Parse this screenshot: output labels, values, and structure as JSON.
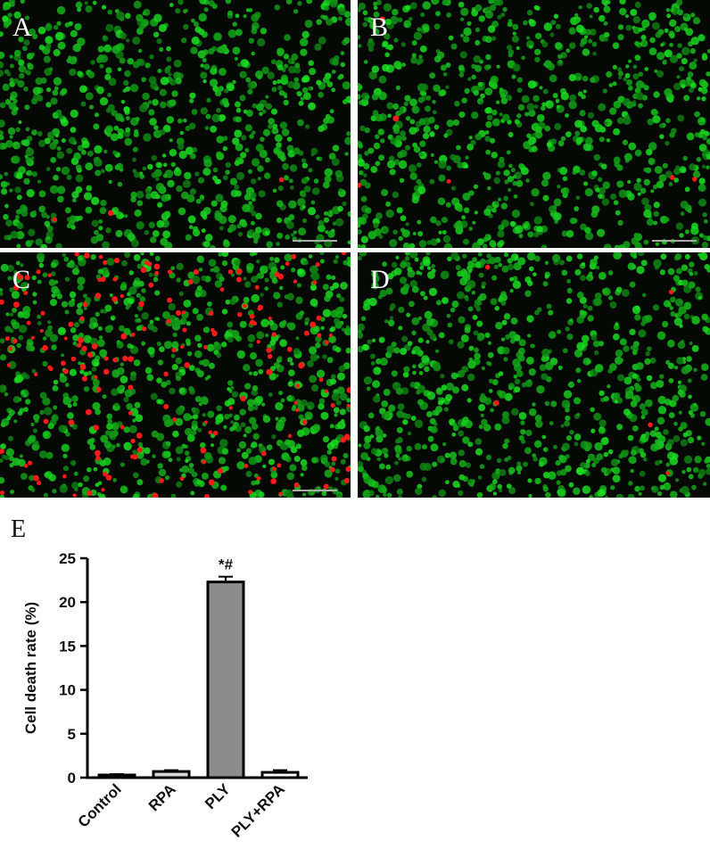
{
  "panels": [
    {
      "label": "A"
    },
    {
      "label": "B"
    },
    {
      "label": "C"
    },
    {
      "label": "D"
    }
  ],
  "chart_data": {
    "type": "bar",
    "label": "E",
    "ylabel": "Cell death rate (%)",
    "categories": [
      "Control",
      "RPA",
      "PLY",
      "PLY+RPA"
    ],
    "values": [
      0.3,
      0.7,
      22.3,
      0.6
    ],
    "errors": [
      0.1,
      0.15,
      0.6,
      0.25
    ],
    "colors": [
      "#ffffff",
      "#d9d9d9",
      "#8c8c8c",
      "#ffffff"
    ],
    "annotations": [
      {
        "text": "*#",
        "category": "PLY"
      }
    ],
    "ylim": [
      0,
      25
    ],
    "yticks": [
      0,
      5,
      10,
      15,
      20,
      25
    ]
  }
}
